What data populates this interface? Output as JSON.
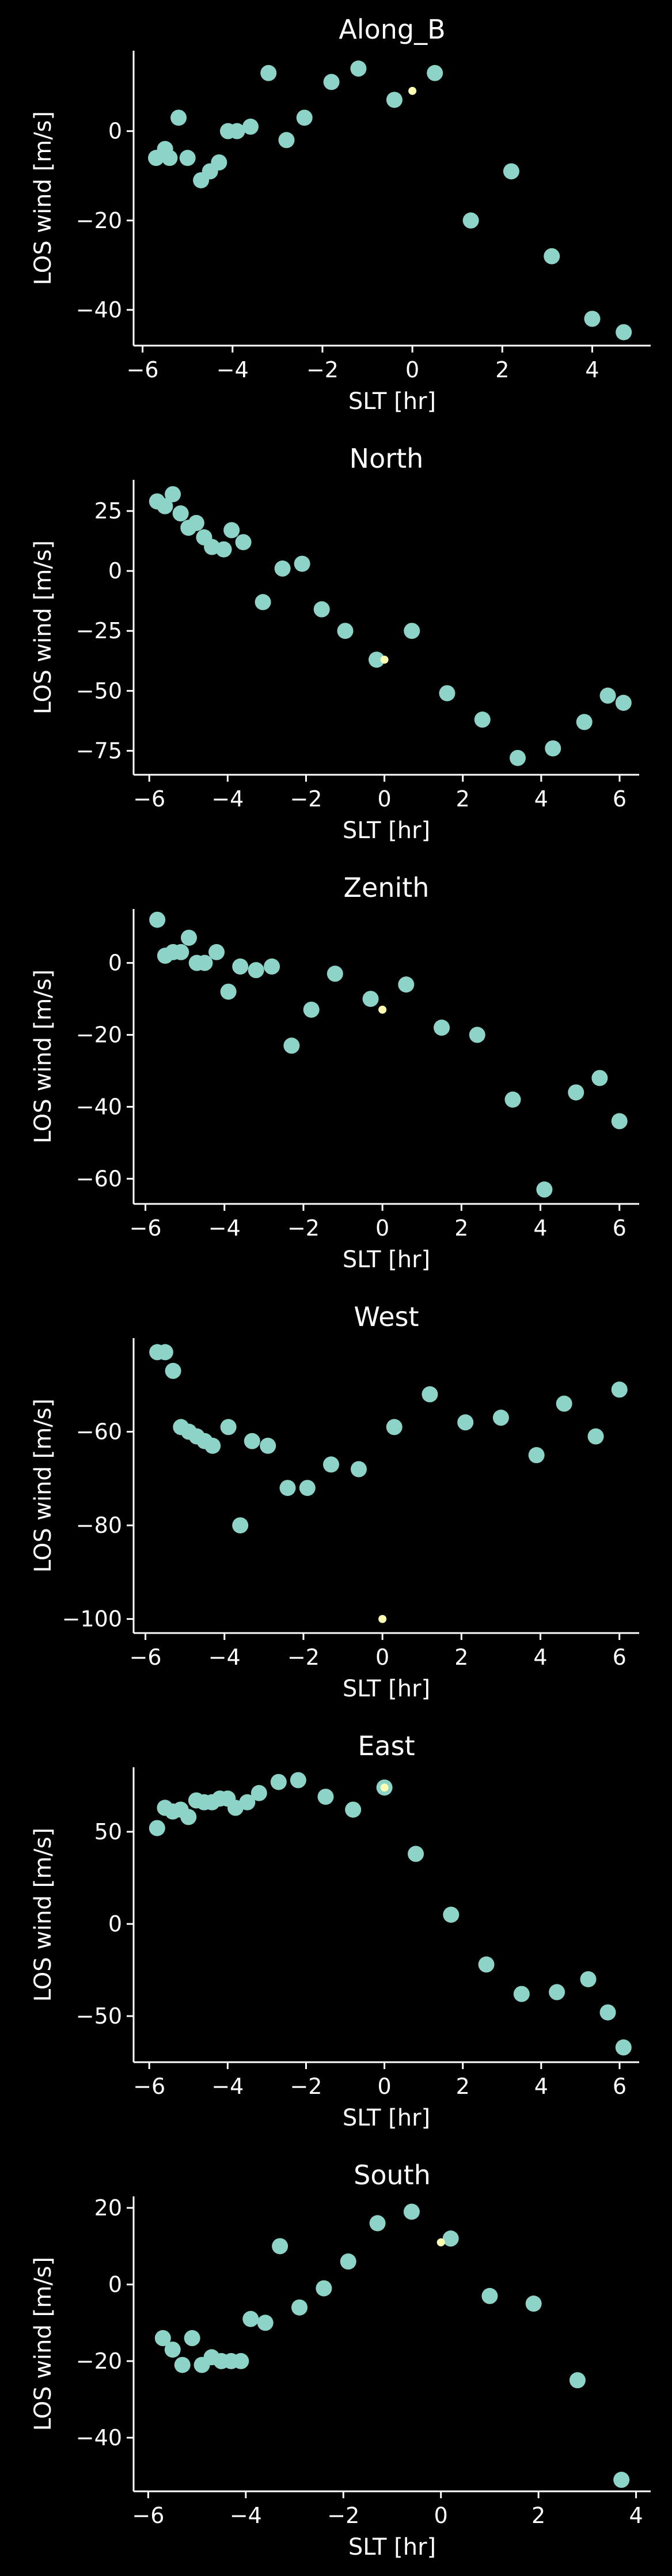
{
  "colors": {
    "background": "#000000",
    "foreground": "#ffffff",
    "point": "#8dd3c7",
    "highlight": "#ffffb3"
  },
  "chart_data": [
    {
      "type": "scatter",
      "title": "Along_B",
      "xlabel": "SLT [hr]",
      "ylabel": "LOS wind [m/s]",
      "xlim": [
        -6.2,
        5.3
      ],
      "ylim": [
        -48,
        18
      ],
      "xticks": [
        -6,
        -4,
        -2,
        0,
        2,
        4
      ],
      "xtick_labels": [
        "−6",
        "−4",
        "−2",
        "0",
        "2",
        "4"
      ],
      "yticks": [
        -40,
        -20,
        0
      ],
      "ytick_labels": [
        "−40",
        "−20",
        "0"
      ],
      "x": [
        -5.7,
        -5.5,
        -5.4,
        -5.2,
        -5.0,
        -4.7,
        -4.5,
        -4.3,
        -4.1,
        -3.9,
        -3.6,
        -3.2,
        -2.8,
        -2.4,
        -1.8,
        -1.2,
        -0.4,
        0.5,
        1.3,
        2.2,
        3.1,
        4.0,
        4.7
      ],
      "y": [
        -6,
        -4,
        -6,
        3,
        -6,
        -11,
        -9,
        -7,
        0,
        0,
        1,
        13,
        -2,
        3,
        11,
        14,
        7,
        13,
        -20,
        -9,
        -28,
        -42,
        -45
      ],
      "highlight": {
        "x": 0.0,
        "y": 9
      },
      "grid": false
    },
    {
      "type": "scatter",
      "title": "North",
      "xlabel": "SLT [hr]",
      "ylabel": "LOS wind [m/s]",
      "xlim": [
        -6.4,
        6.5
      ],
      "ylim": [
        -85,
        38
      ],
      "xticks": [
        -6,
        -4,
        -2,
        0,
        2,
        4,
        6
      ],
      "xtick_labels": [
        "−6",
        "−4",
        "−2",
        "0",
        "2",
        "4",
        "6"
      ],
      "yticks": [
        -75,
        -50,
        -25,
        0,
        25
      ],
      "ytick_labels": [
        "−75",
        "−50",
        "−25",
        "0",
        "25"
      ],
      "x": [
        -5.8,
        -5.6,
        -5.4,
        -5.2,
        -5.0,
        -4.8,
        -4.6,
        -4.4,
        -4.1,
        -3.9,
        -3.6,
        -3.1,
        -2.6,
        -2.1,
        -1.6,
        -1.0,
        -0.2,
        0.7,
        1.6,
        2.5,
        3.4,
        4.3,
        5.1,
        5.7,
        6.1
      ],
      "y": [
        29,
        27,
        32,
        24,
        18,
        20,
        14,
        10,
        9,
        17,
        12,
        -13,
        1,
        3,
        -16,
        -25,
        -37,
        -25,
        -51,
        -62,
        -78,
        -74,
        -63,
        -52,
        -55
      ],
      "highlight": {
        "x": 0.0,
        "y": -37
      },
      "grid": false
    },
    {
      "type": "scatter",
      "title": "Zenith",
      "xlabel": "SLT [hr]",
      "ylabel": "LOS wind [m/s]",
      "xlim": [
        -6.3,
        6.5
      ],
      "ylim": [
        -67,
        15
      ],
      "xticks": [
        -6,
        -4,
        -2,
        0,
        2,
        4,
        6
      ],
      "xtick_labels": [
        "−6",
        "−4",
        "−2",
        "0",
        "2",
        "4",
        "6"
      ],
      "yticks": [
        -60,
        -40,
        -20,
        0
      ],
      "ytick_labels": [
        "−60",
        "−40",
        "−20",
        "0"
      ],
      "x": [
        -5.7,
        -5.5,
        -5.3,
        -5.1,
        -4.9,
        -4.7,
        -4.5,
        -4.2,
        -3.9,
        -3.6,
        -3.2,
        -2.8,
        -2.3,
        -1.8,
        -1.2,
        -0.3,
        0.6,
        1.5,
        2.4,
        3.3,
        4.1,
        4.9,
        5.5,
        6.0
      ],
      "y": [
        12,
        2,
        3,
        3,
        7,
        0,
        0,
        3,
        -8,
        -1,
        -2,
        -1,
        -23,
        -13,
        -3,
        -10,
        -6,
        -18,
        -20,
        -38,
        -63,
        -36,
        -32,
        -44
      ],
      "highlight": {
        "x": 0.0,
        "y": -13
      },
      "grid": false
    },
    {
      "type": "scatter",
      "title": "West",
      "xlabel": "SLT [hr]",
      "ylabel": "LOS wind [m/s]",
      "xlim": [
        -6.3,
        6.5
      ],
      "ylim": [
        -103,
        -40
      ],
      "xticks": [
        -6,
        -4,
        -2,
        0,
        2,
        4,
        6
      ],
      "xtick_labels": [
        "−6",
        "−4",
        "−2",
        "0",
        "2",
        "4",
        "6"
      ],
      "yticks": [
        -100,
        -80,
        -60
      ],
      "ytick_labels": [
        "−100",
        "−80",
        "−60"
      ],
      "x": [
        -5.7,
        -5.5,
        -5.3,
        -5.1,
        -4.9,
        -4.7,
        -4.5,
        -4.3,
        -3.9,
        -3.6,
        -3.3,
        -2.9,
        -2.4,
        -1.9,
        -1.3,
        -0.6,
        0.3,
        1.2,
        2.1,
        3.0,
        3.9,
        4.6,
        5.4,
        6.0
      ],
      "y": [
        -43,
        -43,
        -47,
        -59,
        -60,
        -61,
        -62,
        -63,
        -59,
        -80,
        -62,
        -63,
        -72,
        -72,
        -67,
        -68,
        -59,
        -52,
        -58,
        -57,
        -65,
        -54,
        -61,
        -51
      ],
      "highlight": {
        "x": 0.0,
        "y": -100
      },
      "grid": false
    },
    {
      "type": "scatter",
      "title": "East",
      "xlabel": "SLT [hr]",
      "ylabel": "LOS wind [m/s]",
      "xlim": [
        -6.4,
        6.5
      ],
      "ylim": [
        -75,
        85
      ],
      "xticks": [
        -6,
        -4,
        -2,
        0,
        2,
        4,
        6
      ],
      "xtick_labels": [
        "−6",
        "−4",
        "−2",
        "0",
        "2",
        "4",
        "6"
      ],
      "yticks": [
        -50,
        0,
        50
      ],
      "ytick_labels": [
        "−50",
        "0",
        "50"
      ],
      "x": [
        -5.8,
        -5.6,
        -5.4,
        -5.2,
        -5.0,
        -4.8,
        -4.6,
        -4.4,
        -4.2,
        -4.0,
        -3.8,
        -3.5,
        -3.2,
        -2.7,
        -2.2,
        -1.5,
        -0.8,
        0.0,
        0.8,
        1.7,
        2.6,
        3.5,
        4.4,
        5.2,
        5.7,
        6.1
      ],
      "y": [
        52,
        63,
        61,
        62,
        58,
        67,
        66,
        66,
        68,
        68,
        63,
        66,
        71,
        77,
        78,
        69,
        62,
        74,
        38,
        5,
        -22,
        -38,
        -37,
        -30,
        -48,
        -67
      ],
      "highlight": {
        "x": 0.0,
        "y": 74
      },
      "grid": false
    },
    {
      "type": "scatter",
      "title": "South",
      "xlabel": "SLT [hr]",
      "ylabel": "LOS wind [m/s]",
      "xlim": [
        -6.3,
        4.3
      ],
      "ylim": [
        -54,
        23
      ],
      "xticks": [
        -6,
        -4,
        -2,
        0,
        2,
        4
      ],
      "xtick_labels": [
        "−6",
        "−4",
        "−2",
        "0",
        "2",
        "4"
      ],
      "yticks": [
        -40,
        -20,
        0,
        20
      ],
      "ytick_labels": [
        "−40",
        "−20",
        "0",
        "20"
      ],
      "x": [
        -5.7,
        -5.5,
        -5.3,
        -5.1,
        -4.9,
        -4.7,
        -4.5,
        -4.3,
        -4.1,
        -3.9,
        -3.6,
        -3.3,
        -2.9,
        -2.4,
        -1.9,
        -1.3,
        -0.6,
        0.2,
        1.0,
        1.9,
        2.8,
        3.7
      ],
      "y": [
        -14,
        -17,
        -21,
        -14,
        -21,
        -19,
        -20,
        -20,
        -20,
        -9,
        -10,
        10,
        -6,
        -1,
        6,
        16,
        19,
        12,
        -3,
        -5,
        -25,
        -51
      ],
      "highlight": {
        "x": 0.0,
        "y": 11
      },
      "grid": false
    }
  ]
}
